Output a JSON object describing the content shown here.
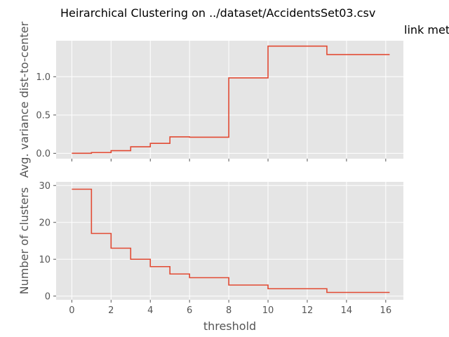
{
  "figure": {
    "title": "Heirarchical Clustering on ../dataset/AccidentsSet03.csv",
    "subtitle": "link met",
    "line_color": "#E24A33",
    "panel_color": "#E5E5E5",
    "grid": true
  },
  "chart_data": [
    {
      "type": "line",
      "ylabel": "Avg. variance dist-to-center",
      "xlabel": "",
      "xlim": [
        -0.8,
        16.9
      ],
      "ylim": [
        -0.07,
        1.47
      ],
      "xticks": [
        0,
        2,
        4,
        6,
        8,
        10,
        12,
        14,
        16
      ],
      "yticks": [
        0.0,
        0.5,
        1.0
      ],
      "ytick_labels": [
        "0.0",
        "0.5",
        "1.0"
      ],
      "show_xtick_labels": false,
      "series": [
        {
          "x": [
            0,
            1,
            1,
            2,
            2,
            3,
            3,
            4,
            4,
            5,
            5,
            6,
            6,
            8,
            8,
            10,
            10,
            13,
            13,
            16.2
          ],
          "y": [
            0.0,
            0.0,
            0.01,
            0.01,
            0.035,
            0.035,
            0.085,
            0.085,
            0.13,
            0.13,
            0.215,
            0.215,
            0.21,
            0.21,
            0.985,
            0.985,
            1.4,
            1.4,
            1.29,
            1.29
          ]
        }
      ]
    },
    {
      "type": "line",
      "ylabel": "Number of clusters",
      "xlabel": "threshold",
      "xlim": [
        -0.8,
        16.9
      ],
      "ylim": [
        -1,
        31
      ],
      "xticks": [
        0,
        2,
        4,
        6,
        8,
        10,
        12,
        14,
        16
      ],
      "xtick_labels": [
        "0",
        "2",
        "4",
        "6",
        "8",
        "10",
        "12",
        "14",
        "16"
      ],
      "yticks": [
        0,
        10,
        20,
        30
      ],
      "ytick_labels": [
        "0",
        "10",
        "20",
        "30"
      ],
      "show_xtick_labels": true,
      "series": [
        {
          "x": [
            0,
            1,
            1,
            2,
            2,
            3,
            3,
            4,
            4,
            5,
            5,
            6,
            6,
            8,
            8,
            10,
            10,
            13,
            13,
            16.2
          ],
          "y": [
            29,
            29,
            17,
            17,
            13,
            13,
            10,
            10,
            8,
            8,
            6,
            6,
            5,
            5,
            3,
            3,
            2,
            2,
            1,
            1
          ]
        }
      ]
    }
  ]
}
